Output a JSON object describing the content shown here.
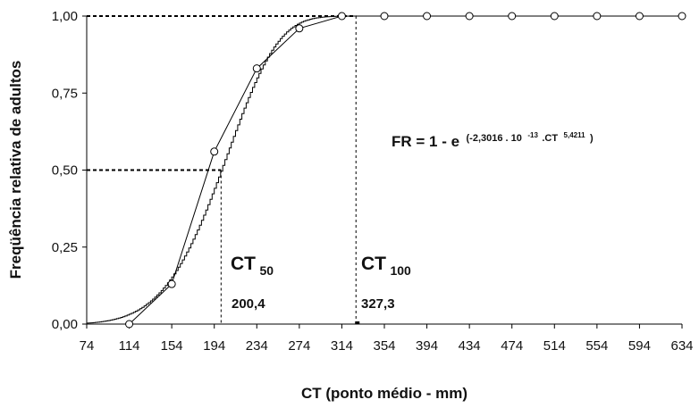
{
  "chart_data": {
    "type": "line",
    "xlabel": "CT (ponto médio - mm)",
    "ylabel": "Freqüência relativa de adultos",
    "xlim": [
      74,
      634
    ],
    "ylim": [
      0,
      1
    ],
    "x_ticks": [
      "74",
      "114",
      "154",
      "194",
      "234",
      "274",
      "314",
      "354",
      "394",
      "434",
      "474",
      "514",
      "554",
      "594",
      "634"
    ],
    "y_ticks": [
      "0,00",
      "0,25",
      "0,50",
      "0,75",
      "1,00"
    ],
    "grid": false,
    "legend": "none",
    "series": [
      {
        "kind": "observed",
        "marker": "open-circle",
        "x": [
          114,
          154,
          194,
          234,
          274,
          314,
          354,
          394,
          434,
          474,
          514,
          554,
          594,
          634
        ],
        "y": [
          0.0,
          0.13,
          0.56,
          0.83,
          0.96,
          1.0,
          1.0,
          1.0,
          1.0,
          1.0,
          1.0,
          1.0,
          1.0,
          1.0
        ]
      },
      {
        "kind": "fitted",
        "style": "stepped-line",
        "model": {
          "a": 2.3016e-13,
          "b": 5.4211,
          "form": "1 - exp(-a * CT^b)"
        }
      }
    ],
    "equation": {
      "prefix": "FR = 1 - e",
      "exponent": "(-2,3016 . 10",
      "power": "-13",
      "exponent_tail": ".CT",
      "ct_power": "5,4211",
      "close": ")"
    },
    "annotations": [
      {
        "id": "ct50",
        "label": "CT",
        "subscript": "50",
        "value_text": "200,4",
        "x": 200.4,
        "y": 0.5
      },
      {
        "id": "ct100",
        "label": "CT",
        "subscript": "100",
        "value_text": "327,3",
        "x": 327.3,
        "y": 1.0
      }
    ]
  }
}
